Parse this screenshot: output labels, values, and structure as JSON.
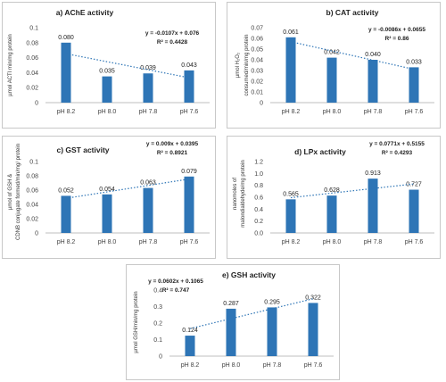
{
  "chart_data": [
    {
      "type": "bar",
      "title": "a) AChE activity",
      "ylabel": "µmol ACTI min/mg protein",
      "categories": [
        "pH 8.2",
        "pH 8.0",
        "pH 7.8",
        "pH 7.6"
      ],
      "values": [
        0.08,
        0.035,
        0.039,
        0.043
      ],
      "value_labels": [
        "0.080",
        "0.035",
        "0.039",
        "0.043"
      ],
      "y_ticks": [
        "0",
        "0.02",
        "0.04",
        "0.06",
        "0.08",
        "0.1"
      ],
      "ylim": [
        0,
        0.1
      ],
      "trendline": {
        "equation": "y = -0.0107x + 0.076",
        "r2": "R² = 0.4428",
        "slope": -0.0107,
        "intercept": 0.076
      },
      "bar_color": "#2e75b6"
    },
    {
      "type": "bar",
      "title": "b) CAT activity",
      "ylabel": "µmol H₂O₂ consumed/min/mg protein",
      "categories": [
        "pH 8.2",
        "pH 8.0",
        "pH 7.8",
        "pH 7.6"
      ],
      "values": [
        0.061,
        0.042,
        0.04,
        0.033
      ],
      "value_labels": [
        "0.061",
        "0.042",
        "0.040",
        "0.033"
      ],
      "y_ticks": [
        "0",
        "0.01",
        "0.02",
        "0.03",
        "0.04",
        "0.05",
        "0.06",
        "0.07"
      ],
      "ylim": [
        0,
        0.07
      ],
      "trendline": {
        "equation": "y = -0.0086x + 0.0655",
        "r2": "R² = 0.86",
        "slope": -0.0086,
        "intercept": 0.0655
      },
      "bar_color": "#2e75b6"
    },
    {
      "type": "bar",
      "title": "c) GST activity",
      "ylabel": "µmol of GSH & CDNB conjugate formed/min/mg/ protein",
      "categories": [
        "pH 8.2",
        "pH 8.0",
        "pH 7.8",
        "pH 7.6"
      ],
      "values": [
        0.052,
        0.054,
        0.063,
        0.079
      ],
      "value_labels": [
        "0.052",
        "0.054",
        "0.063",
        "0.079"
      ],
      "y_ticks": [
        "0",
        "0.02",
        "0.04",
        "0.06",
        "0.08",
        "0.1"
      ],
      "ylim": [
        0,
        0.1
      ],
      "trendline": {
        "equation": "y = 0.009x + 0.0395",
        "r2": "R² = 0.8921",
        "slope": 0.009,
        "intercept": 0.0395
      },
      "bar_color": "#2e75b6"
    },
    {
      "type": "bar",
      "title": "d) LPx activity",
      "ylabel": "nanomoles of malondialdehyde/mg protein",
      "categories": [
        "pH 8.2",
        "pH 8.0",
        "pH 7.8",
        "pH 7.6"
      ],
      "values": [
        0.565,
        0.628,
        0.913,
        0.727
      ],
      "value_labels": [
        "0.565",
        "0.628",
        "0.913",
        "0.727"
      ],
      "y_ticks": [
        "0.0",
        "0.2",
        "0.4",
        "0.6",
        "0.8",
        "1.0",
        "1.2"
      ],
      "ylim": [
        0,
        1.2
      ],
      "trendline": {
        "equation": "y = 0.0771x + 0.5155",
        "r2": "R² = 0.4293",
        "slope": 0.0771,
        "intercept": 0.5155
      },
      "bar_color": "#2e75b6"
    },
    {
      "type": "bar",
      "title": "e) GSH activity",
      "ylabel": "µmol GSH/min/mg protein",
      "categories": [
        "pH 8.2",
        "pH 8.0",
        "pH 7.8",
        "pH 7.6"
      ],
      "values": [
        0.124,
        0.287,
        0.295,
        0.322
      ],
      "value_labels": [
        "0.124",
        "0.287",
        "0.295",
        "0.322"
      ],
      "y_ticks": [
        "0",
        "0.1",
        "0.2",
        "0.3",
        "0.4"
      ],
      "ylim": [
        0,
        0.4
      ],
      "trendline": {
        "equation": "y = 0.0602x + 0.1065",
        "r2": "R² = 0.747",
        "slope": 0.0602,
        "intercept": 0.1065
      },
      "bar_color": "#2e75b6"
    }
  ]
}
